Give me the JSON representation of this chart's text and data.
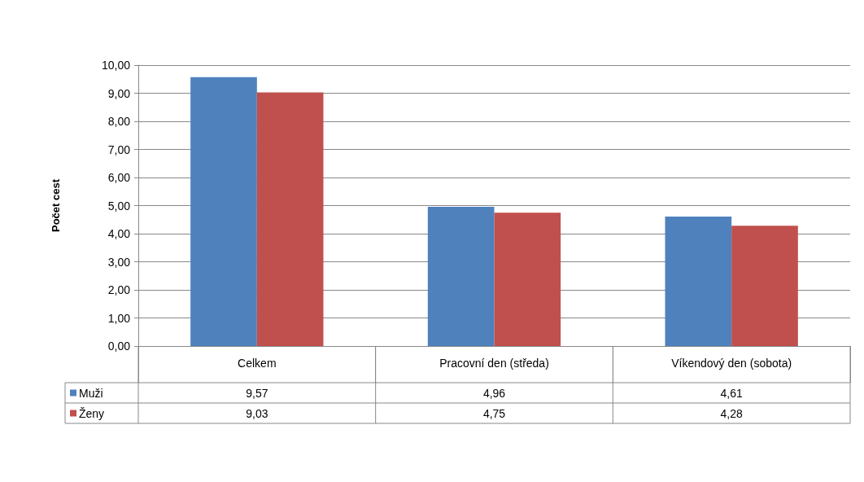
{
  "chart_data": {
    "type": "bar",
    "ylabel": "Počet cest",
    "categories": [
      "Celkem",
      "Pracovní den (středa)",
      "Víkendový den (sobota)"
    ],
    "series": [
      {
        "name": "Muži",
        "color": "#4f81bd",
        "values": [
          9.57,
          4.96,
          4.61
        ],
        "value_labels": [
          "9,57",
          "4,96",
          "4,61"
        ]
      },
      {
        "name": "Ženy",
        "color": "#c0504d",
        "values": [
          9.03,
          4.75,
          4.28
        ],
        "value_labels": [
          "9,03",
          "4,75",
          "4,28"
        ]
      }
    ],
    "ylim": [
      0,
      10
    ],
    "yticks": [
      {
        "value": 0,
        "label": "0,00"
      },
      {
        "value": 1,
        "label": "1,00"
      },
      {
        "value": 2,
        "label": "2,00"
      },
      {
        "value": 3,
        "label": "3,00"
      },
      {
        "value": 4,
        "label": "4,00"
      },
      {
        "value": 5,
        "label": "5,00"
      },
      {
        "value": 6,
        "label": "6,00"
      },
      {
        "value": 7,
        "label": "7,00"
      },
      {
        "value": 8,
        "label": "8,00"
      },
      {
        "value": 9,
        "label": "9,00"
      },
      {
        "value": 10,
        "label": "10,00"
      }
    ],
    "grid": "y",
    "legend": "bottom left"
  }
}
